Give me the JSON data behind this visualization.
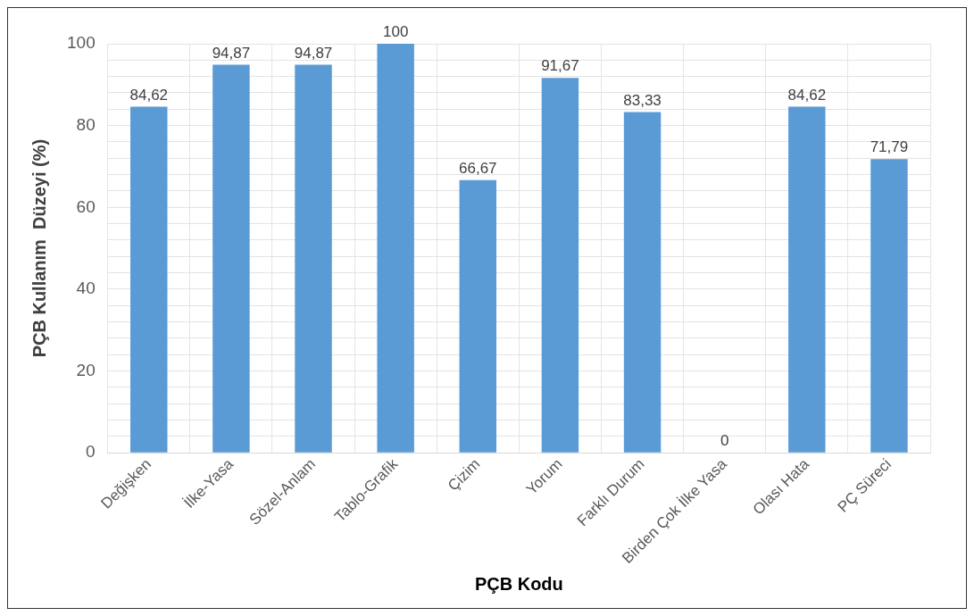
{
  "chart_data": {
    "type": "bar",
    "xlabel": "PÇB Kodu",
    "ylabel": "PÇB Kullanım  Düzeyi (%)",
    "categories": [
      "Değişken",
      "İlke-Yasa",
      "Sözel-Anlam",
      "Tablo-Grafik",
      "Çizim",
      "Yorum",
      "Farklı Durum",
      "Birden Çok İlke Yasa",
      "Olası Hata",
      "PÇ Süreci"
    ],
    "values": [
      84.62,
      94.87,
      94.87,
      100,
      66.67,
      91.67,
      83.33,
      0,
      84.62,
      71.79
    ],
    "value_labels": [
      "84,62",
      "94,87",
      "94,87",
      "100",
      "66,67",
      "91,67",
      "83,33",
      "0",
      "84,62",
      "71,79"
    ],
    "color": "#5b9bd5",
    "ylim": [
      0,
      100
    ],
    "yticks": [
      0,
      {
        "value": 4,
        "label": null
      },
      {
        "value": 8,
        "label": null
      },
      {
        "value": 12,
        "label": null
      },
      {
        "value": 16,
        "label": null
      },
      20,
      {
        "value": 24,
        "label": null
      },
      {
        "value": 28,
        "label": null
      },
      {
        "value": 32,
        "label": null
      },
      {
        "value": 36,
        "label": null
      },
      40,
      {
        "value": 44,
        "label": null
      },
      {
        "value": 48,
        "label": null
      },
      {
        "value": 52,
        "label": null
      },
      {
        "value": 56,
        "label": null
      },
      60,
      {
        "value": 64,
        "label": null
      },
      {
        "value": 68,
        "label": null
      },
      {
        "value": 72,
        "label": null
      },
      {
        "value": 76,
        "label": null
      },
      80,
      {
        "value": 84,
        "label": null
      },
      {
        "value": 88,
        "label": null
      },
      {
        "value": 92,
        "label": null
      },
      {
        "value": 96,
        "label": null
      },
      100
    ],
    "grid": true,
    "legend": false
  }
}
